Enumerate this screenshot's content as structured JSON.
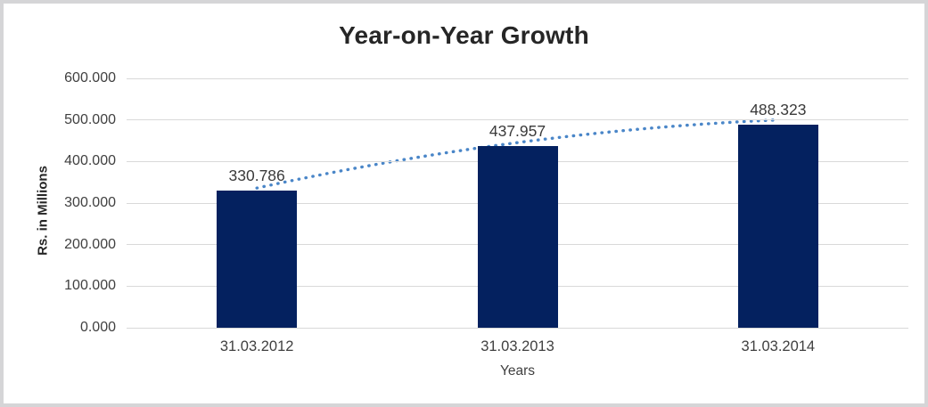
{
  "chart_data": {
    "type": "bar",
    "title": "Year-on-Year Growth",
    "categories": [
      "31.03.2012",
      "31.03.2013",
      "31.03.2014"
    ],
    "values": [
      330.786,
      437.957,
      488.323
    ],
    "data_labels": [
      "330.786",
      "437.957",
      "488.323"
    ],
    "xlabel": "Years",
    "ylabel": "Rs. in Millions",
    "ylim": [
      0,
      600
    ],
    "ytick_step": 100,
    "ytick_labels": [
      "0.000",
      "100.000",
      "200.000",
      "300.000",
      "400.000",
      "500.000",
      "600.000"
    ],
    "grid": "horizontal",
    "legend": "none",
    "trendline": {
      "style": "dotted",
      "shape": "rising-concave",
      "color": "#4a86c8"
    },
    "colors": {
      "bar": "#04215f",
      "gridline": "#d9d9d9",
      "title": "#262626",
      "tick_text": "#404040",
      "background": "#ffffff",
      "frame_border": "#d5d5d7"
    }
  }
}
